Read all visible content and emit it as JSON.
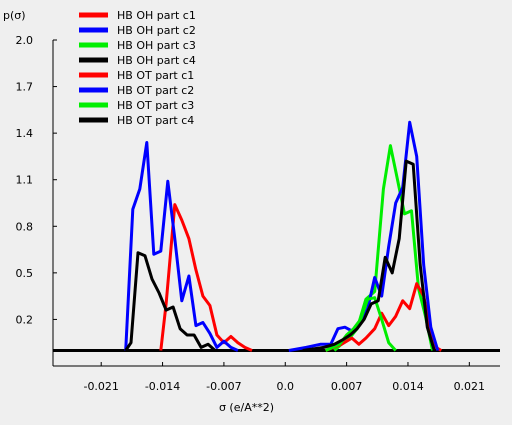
{
  "chart_data": {
    "type": "line",
    "ylabel": "p(σ)",
    "xlabel": "σ (e/A**2)",
    "xlim": [
      -0.0265,
      0.0245
    ],
    "ylim": [
      -0.1,
      2.0
    ],
    "baseline": 0.0,
    "x_ticks": [
      {
        "value": -0.021,
        "label": "-0.021"
      },
      {
        "value": -0.014,
        "label": "-0.014"
      },
      {
        "value": -0.007,
        "label": "-0.007"
      },
      {
        "value": 0.0,
        "label": "0.0"
      },
      {
        "value": 0.007,
        "label": "0.007"
      },
      {
        "value": 0.014,
        "label": "0.014"
      },
      {
        "value": 0.021,
        "label": "0.021"
      }
    ],
    "y_ticks": [
      {
        "value": 2.0,
        "label": "2.0"
      },
      {
        "value": 1.7,
        "label": "1.7"
      },
      {
        "value": 1.4,
        "label": "1.4"
      },
      {
        "value": 1.1,
        "label": "1.1"
      },
      {
        "value": 0.8,
        "label": "0.8"
      },
      {
        "value": 0.5,
        "label": "0.5"
      },
      {
        "value": 0.2,
        "label": "0.2"
      }
    ],
    "legend_position": "top-left",
    "series": [
      {
        "name": "HB OH part c1",
        "color": "#ff0000",
        "points": [
          [
            -0.0142,
            0.0
          ],
          [
            -0.0136,
            0.3
          ],
          [
            -0.0126,
            0.94
          ],
          [
            -0.0118,
            0.84
          ],
          [
            -0.011,
            0.72
          ],
          [
            -0.0102,
            0.52
          ],
          [
            -0.0094,
            0.35
          ],
          [
            -0.0086,
            0.29
          ],
          [
            -0.0078,
            0.1
          ],
          [
            -0.007,
            0.05
          ],
          [
            -0.0062,
            0.09
          ],
          [
            -0.0054,
            0.05
          ],
          [
            -0.0046,
            0.02
          ],
          [
            -0.0038,
            0.0
          ]
        ]
      },
      {
        "name": "HB OH part c2",
        "color": "#0000ff",
        "points": [
          [
            -0.0182,
            0.0
          ],
          [
            -0.0174,
            0.91
          ],
          [
            -0.0166,
            1.04
          ],
          [
            -0.0158,
            1.34
          ],
          [
            -0.015,
            0.62
          ],
          [
            -0.0142,
            0.64
          ],
          [
            -0.0134,
            1.09
          ],
          [
            -0.0126,
            0.72
          ],
          [
            -0.0118,
            0.32
          ],
          [
            -0.011,
            0.48
          ],
          [
            -0.0102,
            0.16
          ],
          [
            -0.0094,
            0.18
          ],
          [
            -0.0086,
            0.11
          ],
          [
            -0.0078,
            0.02
          ],
          [
            -0.007,
            0.06
          ],
          [
            -0.0062,
            0.02
          ],
          [
            -0.0054,
            0.0
          ]
        ]
      },
      {
        "name": "HB OH part c3",
        "color": "#00ee00",
        "points": [
          [
            0.0056,
            0.0
          ],
          [
            0.0064,
            0.04
          ],
          [
            0.0072,
            0.07
          ],
          [
            0.0082,
            0.14
          ],
          [
            0.0092,
            0.33
          ],
          [
            0.0102,
            0.38
          ],
          [
            0.0112,
            1.04
          ],
          [
            0.012,
            1.32
          ],
          [
            0.0128,
            1.1
          ],
          [
            0.0136,
            0.88
          ],
          [
            0.0144,
            0.9
          ],
          [
            0.0152,
            0.4
          ],
          [
            0.016,
            0.22
          ],
          [
            0.0168,
            0.0
          ]
        ]
      },
      {
        "name": "HB OH part c4",
        "color": "#000000",
        "points": [
          [
            -0.0182,
            0.0
          ],
          [
            -0.0176,
            0.05
          ],
          [
            -0.0168,
            0.63
          ],
          [
            -0.016,
            0.61
          ],
          [
            -0.0152,
            0.46
          ],
          [
            -0.0144,
            0.37
          ],
          [
            -0.0136,
            0.26
          ],
          [
            -0.0128,
            0.28
          ],
          [
            -0.012,
            0.14
          ],
          [
            -0.0112,
            0.1
          ],
          [
            -0.0104,
            0.1
          ],
          [
            -0.0096,
            0.02
          ],
          [
            -0.0088,
            0.04
          ],
          [
            -0.008,
            0.0
          ]
        ]
      },
      {
        "name": "HB OT part c1",
        "color": "#ff0000",
        "points": [
          [
            0.0046,
            0.0
          ],
          [
            0.0064,
            0.04
          ],
          [
            0.0076,
            0.08
          ],
          [
            0.0084,
            0.04
          ],
          [
            0.0092,
            0.08
          ],
          [
            0.0102,
            0.14
          ],
          [
            0.011,
            0.24
          ],
          [
            0.0118,
            0.16
          ],
          [
            0.0126,
            0.22
          ],
          [
            0.0134,
            0.32
          ],
          [
            0.0142,
            0.27
          ],
          [
            0.015,
            0.43
          ],
          [
            0.0158,
            0.35
          ],
          [
            0.0166,
            0.12
          ],
          [
            0.0172,
            0.02
          ],
          [
            0.0178,
            0.0
          ]
        ]
      },
      {
        "name": "HB OT part c2",
        "color": "#0000ff",
        "points": [
          [
            0.0004,
            0.0
          ],
          [
            0.0024,
            0.02
          ],
          [
            0.004,
            0.04
          ],
          [
            0.0052,
            0.04
          ],
          [
            0.006,
            0.14
          ],
          [
            0.0068,
            0.15
          ],
          [
            0.0078,
            0.12
          ],
          [
            0.0086,
            0.18
          ],
          [
            0.0094,
            0.27
          ],
          [
            0.0102,
            0.47
          ],
          [
            0.011,
            0.35
          ],
          [
            0.0118,
            0.67
          ],
          [
            0.0126,
            0.95
          ],
          [
            0.0134,
            1.05
          ],
          [
            0.0142,
            1.47
          ],
          [
            0.015,
            1.25
          ],
          [
            0.0158,
            0.55
          ],
          [
            0.0166,
            0.15
          ],
          [
            0.0174,
            0.0
          ]
        ]
      },
      {
        "name": "HB OT part c3",
        "color": "#00ee00",
        "points": [
          [
            0.0046,
            0.0
          ],
          [
            0.0054,
            0.02
          ],
          [
            0.0062,
            0.04
          ],
          [
            0.007,
            0.1
          ],
          [
            0.0078,
            0.14
          ],
          [
            0.0086,
            0.2
          ],
          [
            0.0094,
            0.33
          ],
          [
            0.0102,
            0.34
          ],
          [
            0.011,
            0.2
          ],
          [
            0.0118,
            0.05
          ],
          [
            0.0126,
            0.0
          ]
        ]
      },
      {
        "name": "HB OT part c4",
        "color": "#000000",
        "points": [
          [
            0.002,
            0.0
          ],
          [
            0.0044,
            0.02
          ],
          [
            0.0056,
            0.04
          ],
          [
            0.0066,
            0.07
          ],
          [
            0.0074,
            0.1
          ],
          [
            0.0082,
            0.14
          ],
          [
            0.009,
            0.2
          ],
          [
            0.0098,
            0.3
          ],
          [
            0.0106,
            0.32
          ],
          [
            0.0114,
            0.6
          ],
          [
            0.0122,
            0.5
          ],
          [
            0.013,
            0.72
          ],
          [
            0.0138,
            1.22
          ],
          [
            0.0146,
            1.2
          ],
          [
            0.0154,
            0.55
          ],
          [
            0.0162,
            0.15
          ],
          [
            0.017,
            0.0
          ]
        ]
      }
    ]
  }
}
